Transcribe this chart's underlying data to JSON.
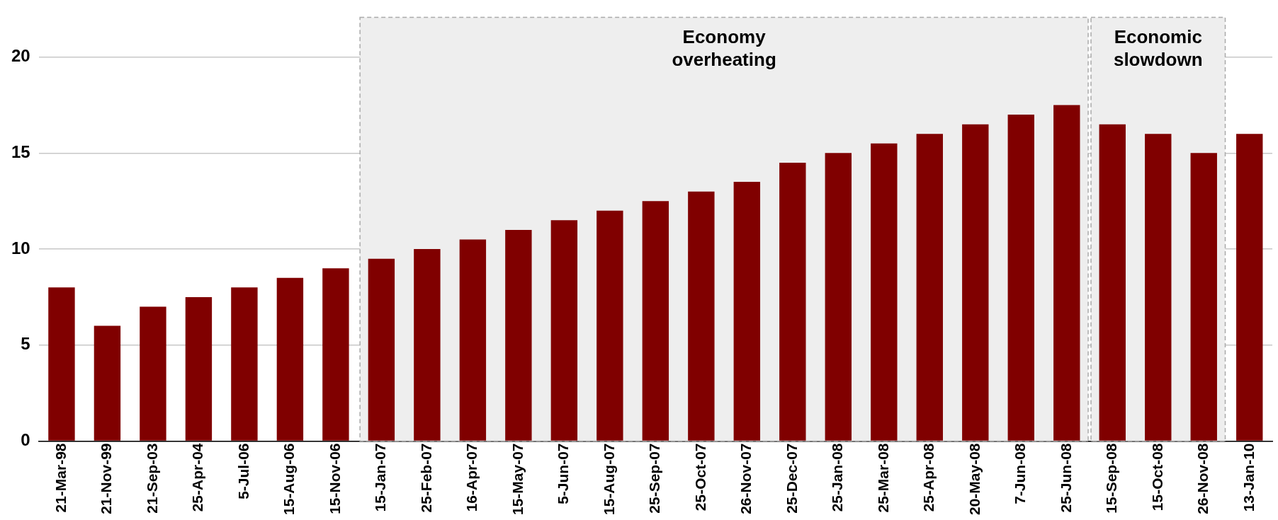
{
  "chart_data": {
    "type": "bar",
    "categories": [
      "21-Mar-98",
      "21-Nov-99",
      "21-Sep-03",
      "25-Apr-04",
      "5-Jul-06",
      "15-Aug-06",
      "15-Nov-06",
      "15-Jan-07",
      "25-Feb-07",
      "16-Apr-07",
      "15-May-07",
      "5-Jun-07",
      "15-Aug-07",
      "25-Sep-07",
      "25-Oct-07",
      "26-Nov-07",
      "25-Dec-07",
      "25-Jan-08",
      "25-Mar-08",
      "25-Apr-08",
      "20-May-08",
      "7-Jun-08",
      "25-Jun-08",
      "15-Sep-08",
      "15-Oct-08",
      "26-Nov-08",
      "13-Jan-10"
    ],
    "values": [
      8,
      6,
      7,
      7.5,
      8,
      8.5,
      9,
      9.5,
      10,
      10.5,
      11,
      11.5,
      12,
      12.5,
      13,
      13.5,
      14.5,
      15,
      15.5,
      16,
      16.5,
      17,
      17.5,
      16.5,
      16,
      15,
      16
    ],
    "color": "#800000",
    "ylim": [
      0,
      22
    ],
    "yticks": [
      0,
      5,
      10,
      15,
      20
    ],
    "grid": "y",
    "bands": [
      {
        "axis": "x",
        "from": "15-Jan-07",
        "to": "25-Jun-08",
        "label": "Economy overheating",
        "color": "#eeeeee"
      },
      {
        "axis": "x",
        "from": "15-Sep-08",
        "to": "26-Nov-08",
        "label": "Economic slowdown",
        "color": "#eeeeee"
      }
    ]
  }
}
